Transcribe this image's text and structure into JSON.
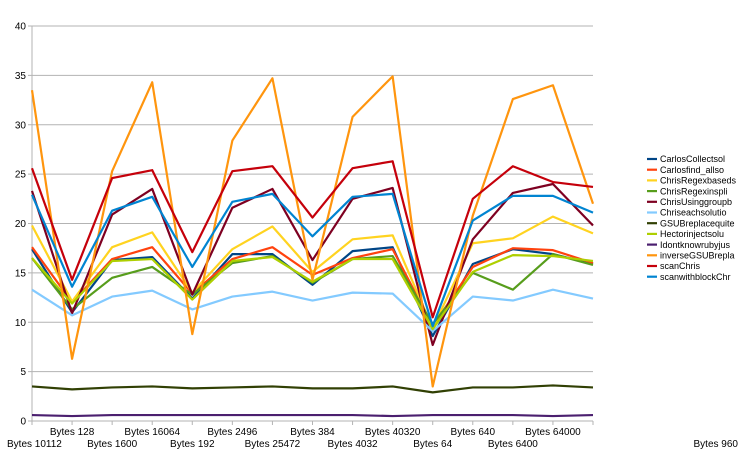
{
  "chart_data": {
    "type": "line",
    "title": "",
    "xlabel": "",
    "ylabel": "",
    "ylim": [
      0,
      40
    ],
    "yticks": [
      0,
      5,
      10,
      15,
      20,
      25,
      30,
      35,
      40
    ],
    "grid": "horizontal",
    "legend": "right",
    "categories": [
      "Bytes 10112",
      "Bytes 128",
      "Bytes 1600",
      "Bytes 16064",
      "Bytes 192",
      "Bytes 2496",
      "Bytes 25472",
      "Bytes 384",
      "Bytes 4032",
      "Bytes 40320",
      "Bytes 64",
      "Bytes 640",
      "Bytes 6400",
      "Bytes 64000",
      "Bytes 960"
    ],
    "series": [
      {
        "name": "CarlosCollectsol",
        "color": "#004586",
        "values": [
          17.4,
          11.0,
          16.3,
          16.6,
          12.4,
          16.9,
          16.9,
          13.8,
          17.2,
          17.6,
          8.6,
          15.9,
          17.4,
          16.9,
          15.9
        ]
      },
      {
        "name": "Carlosfind_allso",
        "color": "#ff420e",
        "values": [
          17.6,
          12.0,
          16.4,
          17.6,
          12.9,
          16.4,
          17.6,
          14.8,
          16.5,
          17.4,
          9.6,
          15.6,
          17.5,
          17.3,
          16.0
        ]
      },
      {
        "name": "ChrisRegexbaseds",
        "color": "#ffd320",
        "values": [
          19.8,
          12.1,
          17.6,
          19.1,
          13.0,
          17.4,
          19.7,
          15.1,
          18.4,
          18.8,
          9.4,
          18.0,
          18.5,
          20.7,
          19.0
        ]
      },
      {
        "name": "ChrisRegexinspli",
        "color": "#579d1c",
        "values": [
          16.5,
          11.3,
          14.5,
          15.6,
          12.8,
          16.0,
          16.7,
          14.0,
          16.4,
          16.7,
          9.8,
          15.0,
          13.3,
          16.9,
          15.8
        ]
      },
      {
        "name": "ChrisUsinggroupb",
        "color": "#7e0021",
        "values": [
          23.3,
          10.9,
          20.9,
          23.5,
          12.8,
          21.6,
          23.5,
          16.3,
          22.5,
          23.6,
          7.7,
          18.4,
          23.1,
          24.0,
          19.8
        ]
      },
      {
        "name": "Chriseachsolutio",
        "color": "#83caff",
        "values": [
          13.3,
          10.7,
          12.6,
          13.2,
          11.3,
          12.6,
          13.1,
          12.2,
          13.0,
          12.9,
          9.1,
          12.6,
          12.2,
          13.3,
          12.4
        ]
      },
      {
        "name": "GSUBreplacequite",
        "color": "#314004",
        "values": [
          3.5,
          3.2,
          3.4,
          3.5,
          3.3,
          3.4,
          3.5,
          3.3,
          3.3,
          3.5,
          2.9,
          3.4,
          3.4,
          3.6,
          3.4
        ]
      },
      {
        "name": "Hectorinjectsolu",
        "color": "#aecf00",
        "values": [
          16.5,
          11.9,
          16.2,
          16.4,
          12.3,
          16.2,
          16.6,
          14.1,
          16.4,
          16.4,
          9.3,
          15.1,
          16.8,
          16.7,
          16.2
        ]
      },
      {
        "name": "Idontknowrubyjus",
        "color": "#4b1f6f",
        "values": [
          0.6,
          0.5,
          0.6,
          0.6,
          0.6,
          0.6,
          0.6,
          0.6,
          0.6,
          0.5,
          0.6,
          0.6,
          0.6,
          0.5,
          0.6
        ]
      },
      {
        "name": "inverseGSUBrepla",
        "color": "#ff950e",
        "values": [
          33.5,
          6.3,
          25.3,
          34.3,
          8.8,
          28.4,
          34.7,
          14.3,
          30.8,
          34.9,
          3.5,
          20.8,
          32.6,
          34.0,
          22.0
        ]
      },
      {
        "name": "scanChris",
        "color": "#c5000b",
        "values": [
          25.6,
          14.3,
          24.6,
          25.4,
          17.1,
          25.3,
          25.8,
          20.6,
          25.6,
          26.3,
          10.5,
          22.5,
          25.8,
          24.2,
          23.7
        ]
      },
      {
        "name": "scanwithblockChr",
        "color": "#0084d1",
        "values": [
          22.9,
          13.6,
          21.3,
          22.7,
          15.6,
          22.2,
          23.0,
          18.7,
          22.7,
          23.0,
          9.6,
          20.3,
          22.8,
          22.8,
          21.1
        ]
      }
    ]
  }
}
